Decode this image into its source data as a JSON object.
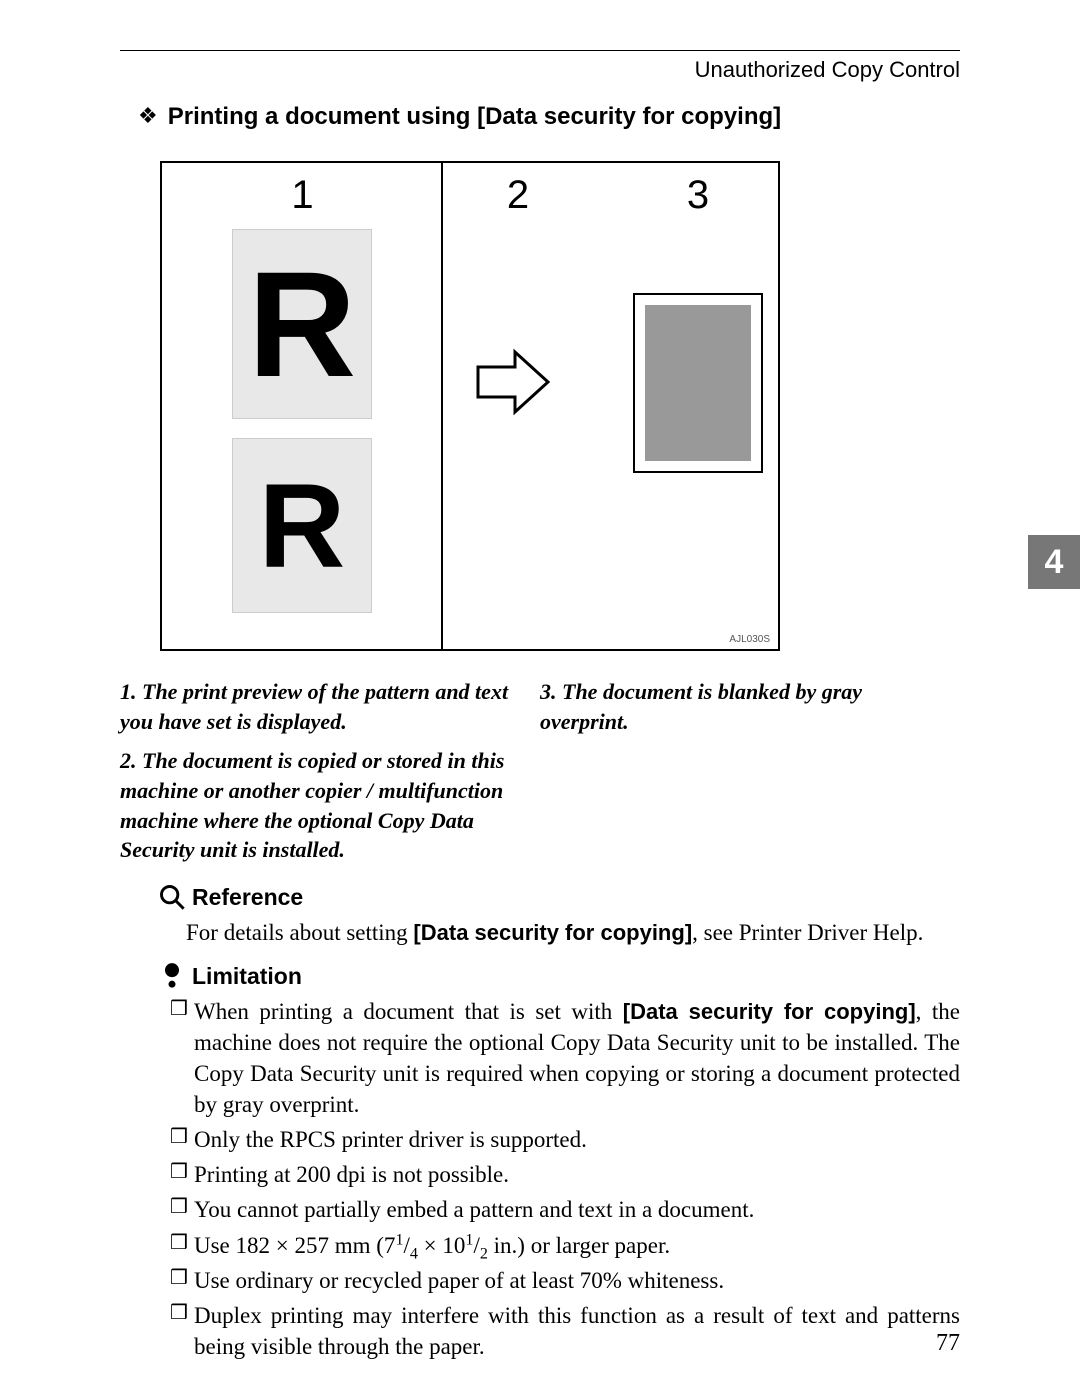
{
  "header": {
    "title": "Unauthorized Copy Control"
  },
  "section": {
    "bullet": "❖",
    "title": "Printing a document using [Data security for copying]"
  },
  "figure": {
    "num1": "1",
    "num2": "2",
    "num3": "3",
    "R": "R",
    "caption": "AJL030S"
  },
  "steps": {
    "s1_num": "1.",
    "s1_text": "The print preview of the pattern and text you have set is displayed.",
    "s2_num": "2.",
    "s2_text": "The document is copied or stored in this machine or another copier / multifunction machine where the optional Copy Data Security unit is installed.",
    "s3_num": "3.",
    "s3_text": "The document is blanked by gray overprint."
  },
  "reference": {
    "label": "Reference",
    "text_pre": "For details about setting ",
    "bold": "[Data security for copying]",
    "text_post": ", see Printer Driver Help."
  },
  "limitation": {
    "label": "Limitation",
    "bullet": "❒",
    "items": [
      {
        "pre": "When printing a document that is set with ",
        "bold": "[Data security for copying]",
        "post": ", the machine does not require the optional Copy Data Security unit to be installed. The Copy Data Security unit is required when copying or storing a document protected by gray overprint."
      },
      {
        "plain": "Only the RPCS printer driver is supported."
      },
      {
        "plain": "Printing at 200 dpi is not possible."
      },
      {
        "plain": "You cannot partially embed a pattern and text in a document."
      },
      {
        "html": "Use 182 × 257 mm (7<sup>1</sup>/<sub>4</sub> × 10<sup>1</sup>/<sub>2</sub> in.) or larger paper."
      },
      {
        "plain": "Use ordinary or recycled paper of at least 70% whiteness."
      },
      {
        "plain": "Duplex printing may interfere with this function as a result of text and patterns being visible through the paper."
      }
    ]
  },
  "page_number": "77",
  "chapter_tab": "4",
  "colors": {
    "tab_bg": "#777777",
    "gray_fill": "#999999",
    "pattern_bg": "#e8e8e8"
  }
}
